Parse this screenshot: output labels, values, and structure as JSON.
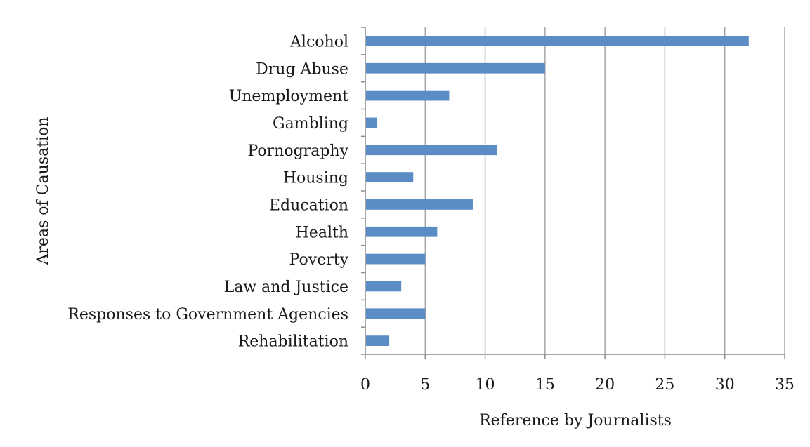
{
  "chart_data": {
    "type": "bar",
    "orientation": "horizontal",
    "categories": [
      "Alcohol",
      "Drug Abuse",
      "Unemployment",
      "Gambling",
      "Pornography",
      "Housing",
      "Education",
      "Health",
      "Poverty",
      "Law and Justice",
      "Responses to Government Agencies",
      "Rehabilitation"
    ],
    "values": [
      32,
      15,
      7,
      1,
      11,
      4,
      9,
      6,
      5,
      3,
      5,
      2
    ],
    "xlabel": "Reference by Journalists",
    "ylabel": "Areas of Causation",
    "xlim": [
      0,
      35
    ],
    "xticks": [
      0,
      5,
      10,
      15,
      20,
      25,
      30,
      35
    ],
    "grid": "vertical",
    "legend": "none",
    "bar_color": "#5b8cc6",
    "grid_color": "#a6a6a6"
  }
}
